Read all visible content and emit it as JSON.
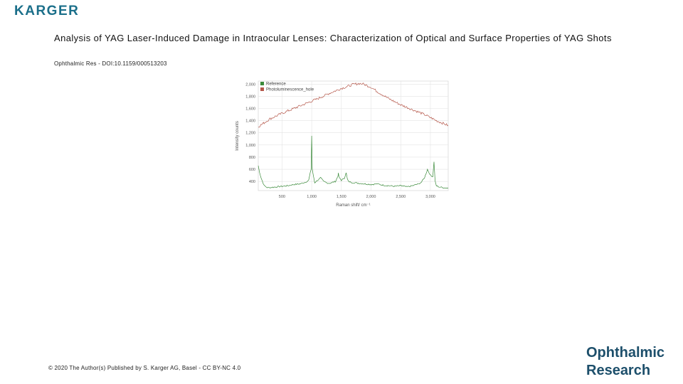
{
  "publisher_logo": "KARGER",
  "header": {
    "title": "Analysis of YAG Laser-Induced Damage in Intraocular Lenses: Characterization of Optical and Surface Properties of YAG Shots",
    "doi": "Ophthalmic Res - DOI:10.1159/000513203"
  },
  "footer": {
    "copyright": "© 2020 The Author(s) Published by S. Karger AG, Basel - CC BY-NC 4.0",
    "journal_line1": "Ophthalmic",
    "journal_line2": "Research"
  },
  "chart_data": {
    "type": "line",
    "xlabel": "Raman shift/ cm⁻¹",
    "ylabel": "Intensity counts",
    "xlim": [
      100,
      3300
    ],
    "ylim": [
      250,
      2050
    ],
    "x_ticks": [
      500,
      1000,
      1500,
      2000,
      2500,
      3000
    ],
    "x_tick_labels": [
      "500",
      "1,000",
      "1,500",
      "2,000",
      "2,500",
      "3,000"
    ],
    "y_ticks": [
      400,
      600,
      800,
      1000,
      1200,
      1400,
      1600,
      1800,
      2000
    ],
    "y_tick_labels": [
      "400",
      "600",
      "800",
      "1,000",
      "1,200",
      "1,400",
      "1,600",
      "1,800",
      "2,000"
    ],
    "grid": true,
    "legend_position": "top-left",
    "series": [
      {
        "name": "Reference",
        "color": "#3a8a3a",
        "x": [
          100,
          120,
          150,
          200,
          250,
          300,
          400,
          500,
          600,
          700,
          800,
          900,
          950,
          990,
          1000,
          1010,
          1050,
          1100,
          1150,
          1200,
          1250,
          1300,
          1400,
          1440,
          1450,
          1460,
          1500,
          1550,
          1580,
          1600,
          1620,
          1650,
          1700,
          1800,
          1900,
          2000,
          2100,
          2200,
          2300,
          2400,
          2500,
          2600,
          2700,
          2800,
          2850,
          2900,
          2930,
          2950,
          3000,
          3040,
          3060,
          3070,
          3080,
          3100,
          3150,
          3200,
          3300
        ],
        "y": [
          660,
          560,
          450,
          330,
          300,
          300,
          310,
          320,
          330,
          350,
          360,
          390,
          420,
          600,
          1150,
          600,
          380,
          420,
          460,
          400,
          380,
          370,
          400,
          480,
          530,
          470,
          420,
          450,
          550,
          440,
          400,
          390,
          380,
          370,
          360,
          350,
          360,
          340,
          330,
          320,
          330,
          310,
          330,
          360,
          390,
          460,
          540,
          600,
          500,
          480,
          720,
          560,
          400,
          330,
          310,
          300,
          290
        ]
      },
      {
        "name": "Photoluminescence_hole",
        "color": "#b5574a",
        "x": [
          100,
          300,
          500,
          700,
          900,
          1100,
          1300,
          1500,
          1600,
          1700,
          1800,
          1850,
          1900,
          2000,
          2100,
          2300,
          2500,
          2700,
          2900,
          3100,
          3300
        ],
        "y": [
          1300,
          1430,
          1520,
          1600,
          1680,
          1760,
          1850,
          1930,
          1960,
          1995,
          2010,
          2005,
          1990,
          1950,
          1880,
          1760,
          1660,
          1580,
          1500,
          1400,
          1320
        ]
      }
    ]
  }
}
